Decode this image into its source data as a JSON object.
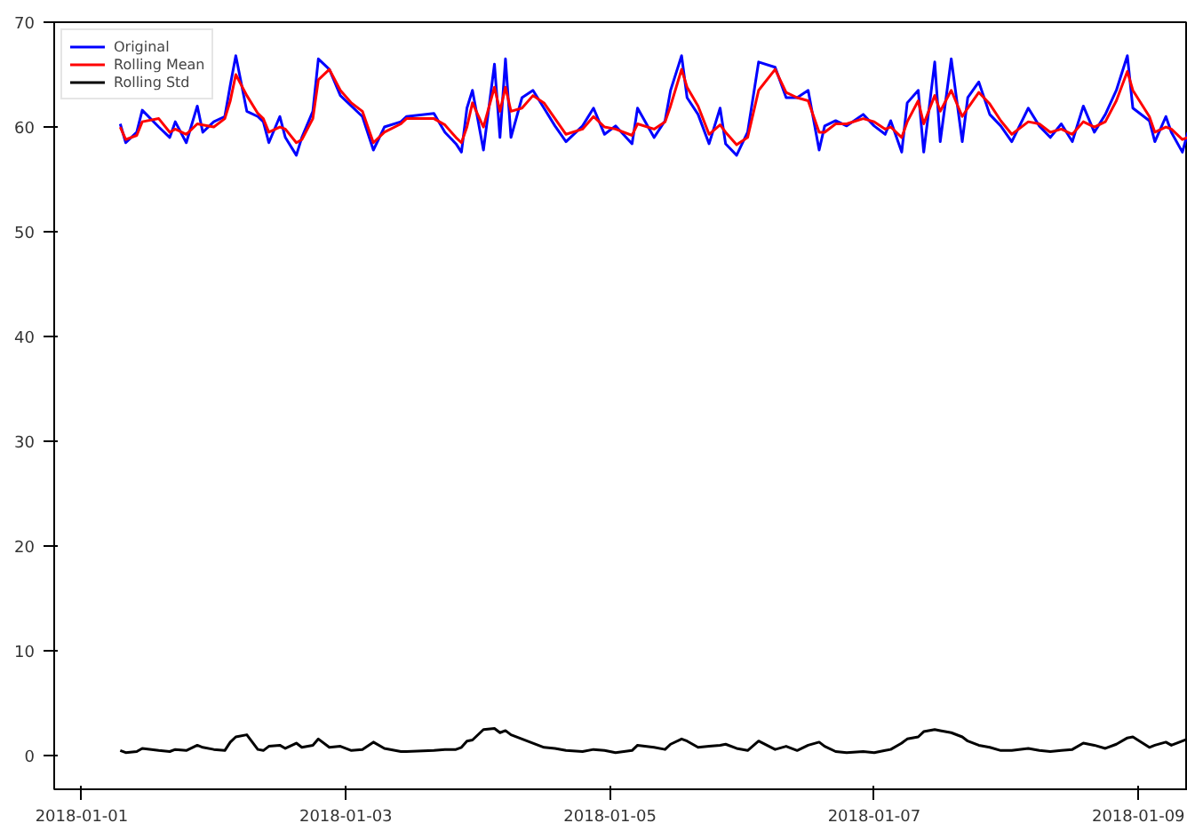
{
  "chart_data": {
    "type": "line",
    "xlim": [
      "2017-12-31T19:00",
      "2018-01-09T09:00"
    ],
    "ylim": [
      -3.2,
      70
    ],
    "xticks": [
      "2018-01-01",
      "2018-01-03",
      "2018-01-05",
      "2018-01-07",
      "2018-01-09"
    ],
    "yticks": [
      0,
      10,
      20,
      30,
      40,
      50,
      60,
      70
    ],
    "grid": false,
    "legend": "top left",
    "marker": "none",
    "line_style": "solid",
    "x": [
      "2018-01-01T07:00",
      "2018-01-01T08:00",
      "2018-01-01T10:00",
      "2018-01-01T11:00",
      "2018-01-01T14:00",
      "2018-01-01T16:00",
      "2018-01-01T17:00",
      "2018-01-01T19:00",
      "2018-01-01T21:00",
      "2018-01-01T22:00",
      "2018-01-02T00:00",
      "2018-01-02T02:00",
      "2018-01-02T03:00",
      "2018-01-02T04:00",
      "2018-01-02T06:00",
      "2018-01-02T08:00",
      "2018-01-02T09:00",
      "2018-01-02T10:00",
      "2018-01-02T12:00",
      "2018-01-02T13:00",
      "2018-01-02T15:00",
      "2018-01-02T16:00",
      "2018-01-02T18:00",
      "2018-01-02T19:00",
      "2018-01-02T21:00",
      "2018-01-02T23:00",
      "2018-01-03T01:00",
      "2018-01-03T03:00",
      "2018-01-03T05:00",
      "2018-01-03T07:00",
      "2018-01-03T10:00",
      "2018-01-03T11:00",
      "2018-01-03T16:00",
      "2018-01-03T18:00",
      "2018-01-03T20:00",
      "2018-01-03T21:00",
      "2018-01-03T22:00",
      "2018-01-03T23:00",
      "2018-01-04T01:00",
      "2018-01-04T03:00",
      "2018-01-04T04:00",
      "2018-01-04T05:00",
      "2018-01-04T06:00",
      "2018-01-04T08:00",
      "2018-01-04T10:00",
      "2018-01-04T12:00",
      "2018-01-04T14:00",
      "2018-01-04T16:00",
      "2018-01-04T19:00",
      "2018-01-04T21:00",
      "2018-01-04T23:00",
      "2018-01-05T01:00",
      "2018-01-05T04:00",
      "2018-01-05T05:00",
      "2018-01-05T08:00",
      "2018-01-05T10:00",
      "2018-01-05T11:00",
      "2018-01-05T13:00",
      "2018-01-05T14:00",
      "2018-01-05T16:00",
      "2018-01-05T18:00",
      "2018-01-05T20:00",
      "2018-01-05T21:00",
      "2018-01-05T23:00",
      "2018-01-06T01:00",
      "2018-01-06T03:00",
      "2018-01-06T06:00",
      "2018-01-06T08:00",
      "2018-01-06T10:00",
      "2018-01-06T12:00",
      "2018-01-06T14:00",
      "2018-01-06T15:00",
      "2018-01-06T17:00",
      "2018-01-06T19:00",
      "2018-01-06T22:00",
      "2018-01-07T00:00",
      "2018-01-07T02:00",
      "2018-01-07T03:00",
      "2018-01-07T05:00",
      "2018-01-07T06:00",
      "2018-01-07T08:00",
      "2018-01-07T09:00",
      "2018-01-07T11:00",
      "2018-01-07T12:00",
      "2018-01-07T14:00",
      "2018-01-07T16:00",
      "2018-01-07T17:00",
      "2018-01-07T19:00",
      "2018-01-07T21:00",
      "2018-01-07T23:00",
      "2018-01-08T01:00",
      "2018-01-08T04:00",
      "2018-01-08T06:00",
      "2018-01-08T08:00",
      "2018-01-08T10:00",
      "2018-01-08T12:00",
      "2018-01-08T14:00",
      "2018-01-08T16:00",
      "2018-01-08T18:00",
      "2018-01-08T20:00",
      "2018-01-08T22:00",
      "2018-01-08T23:00",
      "2018-01-09T02:00",
      "2018-01-09T03:00",
      "2018-01-09T05:00",
      "2018-01-09T06:00",
      "2018-01-09T08:00",
      "2018-01-09T09:00"
    ],
    "series": [
      {
        "name": "Original",
        "color": "#0000ff",
        "values": [
          60.3,
          58.5,
          59.5,
          61.6,
          60.0,
          59.0,
          60.5,
          58.5,
          62.0,
          59.5,
          60.5,
          61.0,
          64.0,
          66.8,
          61.5,
          61.0,
          60.5,
          58.5,
          61.0,
          59.0,
          57.3,
          59.0,
          61.5,
          66.5,
          65.5,
          63.0,
          62.0,
          61.0,
          57.8,
          60.0,
          60.5,
          61.0,
          61.3,
          59.5,
          58.4,
          57.6,
          61.8,
          63.5,
          57.8,
          66.0,
          59.0,
          66.5,
          59.0,
          62.8,
          63.5,
          61.8,
          60.1,
          58.6,
          60.1,
          61.8,
          59.3,
          60.1,
          58.4,
          61.8,
          59.0,
          60.6,
          63.5,
          66.8,
          62.8,
          61.2,
          58.4,
          61.8,
          58.4,
          57.3,
          59.5,
          66.2,
          65.7,
          62.8,
          62.8,
          63.5,
          57.8,
          60.1,
          60.6,
          60.1,
          61.2,
          60.1,
          59.3,
          60.6,
          57.6,
          62.3,
          63.5,
          57.6,
          66.2,
          58.6,
          66.5,
          58.6,
          62.8,
          64.3,
          61.2,
          60.1,
          58.6,
          61.8,
          60.1,
          59.0,
          60.3,
          58.6,
          62.0,
          59.5,
          61.2,
          63.5,
          66.8,
          61.8,
          60.6,
          58.6,
          61.0,
          59.5,
          57.6,
          59.5
        ]
      },
      {
        "name": "Rolling Mean",
        "color": "#ff0000",
        "values": [
          60.0,
          58.8,
          59.2,
          60.5,
          60.8,
          59.5,
          59.8,
          59.3,
          60.3,
          60.2,
          60.0,
          60.8,
          62.5,
          65.0,
          63.0,
          61.3,
          60.8,
          59.5,
          60.0,
          59.8,
          58.5,
          58.8,
          60.8,
          64.5,
          65.5,
          63.5,
          62.3,
          61.5,
          58.5,
          59.5,
          60.3,
          60.8,
          60.8,
          60.2,
          59.0,
          58.5,
          60.0,
          62.3,
          60.0,
          63.8,
          61.5,
          63.8,
          61.5,
          61.8,
          63.0,
          62.3,
          60.8,
          59.3,
          59.8,
          61.0,
          60.0,
          59.8,
          59.2,
          60.3,
          59.8,
          60.5,
          62.0,
          65.5,
          63.8,
          62.0,
          59.3,
          60.2,
          59.5,
          58.3,
          59.0,
          63.5,
          65.5,
          63.3,
          62.8,
          62.5,
          59.5,
          59.5,
          60.3,
          60.3,
          60.8,
          60.5,
          59.8,
          60.0,
          59.0,
          60.5,
          62.5,
          60.3,
          63.0,
          61.5,
          63.5,
          61.0,
          61.8,
          63.3,
          62.2,
          60.6,
          59.3,
          60.5,
          60.3,
          59.5,
          59.8,
          59.3,
          60.5,
          60.0,
          60.5,
          62.5,
          65.3,
          63.5,
          61.0,
          59.5,
          60.0,
          59.8,
          58.8,
          59.0
        ]
      },
      {
        "name": "Rolling Std",
        "color": "#000000",
        "values": [
          0.5,
          0.3,
          0.4,
          0.7,
          0.5,
          0.4,
          0.6,
          0.5,
          1.0,
          0.8,
          0.6,
          0.5,
          1.3,
          1.8,
          2.0,
          0.6,
          0.5,
          0.9,
          1.0,
          0.7,
          1.2,
          0.8,
          1.0,
          1.6,
          0.8,
          0.9,
          0.5,
          0.6,
          1.3,
          0.7,
          0.4,
          0.4,
          0.5,
          0.6,
          0.6,
          0.8,
          1.4,
          1.5,
          2.5,
          2.6,
          2.2,
          2.4,
          2.0,
          1.6,
          1.2,
          0.8,
          0.7,
          0.5,
          0.4,
          0.6,
          0.5,
          0.3,
          0.5,
          1.0,
          0.8,
          0.6,
          1.1,
          1.6,
          1.4,
          0.8,
          0.9,
          1.0,
          1.1,
          0.7,
          0.5,
          1.4,
          0.6,
          0.9,
          0.5,
          1.0,
          1.3,
          0.9,
          0.4,
          0.3,
          0.4,
          0.3,
          0.5,
          0.6,
          1.2,
          1.6,
          1.8,
          2.3,
          2.5,
          2.4,
          2.2,
          1.8,
          1.4,
          1.0,
          0.8,
          0.5,
          0.5,
          0.7,
          0.5,
          0.4,
          0.5,
          0.6,
          1.2,
          1.0,
          0.7,
          1.1,
          1.7,
          1.8,
          0.8,
          1.0,
          1.3,
          1.0,
          1.4,
          1.6
        ]
      }
    ]
  }
}
